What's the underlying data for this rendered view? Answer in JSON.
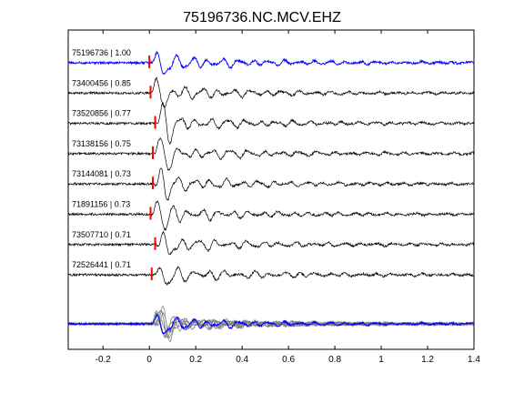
{
  "chart_data": {
    "type": "line",
    "title": "75196736.NC.MCV.EHZ",
    "xlabel": "",
    "ylabel": "",
    "xlim": [
      -0.35,
      1.4
    ],
    "xticks": [
      -0.2,
      0,
      0.2,
      0.4,
      0.6,
      0.8,
      1,
      1.2,
      1.4
    ],
    "xtick_labels": [
      "-0.2",
      "0",
      "0.2",
      "0.4",
      "0.6",
      "0.8",
      "1",
      "1.2",
      "1.4"
    ],
    "grid": false,
    "legend": "none",
    "template_color": "#0000ff",
    "trace_color": "#000000",
    "stack_color": "#808080",
    "pick_color": "#ff0000",
    "traces": [
      {
        "label": "75196736 | 1.00",
        "id": "75196736",
        "cc": 1.0,
        "pick_time": 0.0,
        "is_template": true
      },
      {
        "label": "73400456 | 0.85",
        "id": "73400456",
        "cc": 0.85,
        "pick_time": 0.005,
        "is_template": false
      },
      {
        "label": "73520856 | 0.77",
        "id": "73520856",
        "cc": 0.77,
        "pick_time": 0.025,
        "is_template": false
      },
      {
        "label": "73138156 | 0.75",
        "id": "73138156",
        "cc": 0.75,
        "pick_time": 0.015,
        "is_template": false
      },
      {
        "label": "73144081 | 0.73",
        "id": "73144081",
        "cc": 0.73,
        "pick_time": 0.015,
        "is_template": false
      },
      {
        "label": "71891156 | 0.73",
        "id": "71891156",
        "cc": 0.73,
        "pick_time": 0.005,
        "is_template": false
      },
      {
        "label": "73507710 | 0.71",
        "id": "73507710",
        "cc": 0.71,
        "pick_time": 0.025,
        "is_template": false
      },
      {
        "label": "72526441 | 0.71",
        "id": "72526441",
        "cc": 0.71,
        "pick_time": 0.01,
        "is_template": false
      }
    ],
    "overlay": {
      "description": "all traces overlaid, aligned on pick"
    }
  }
}
